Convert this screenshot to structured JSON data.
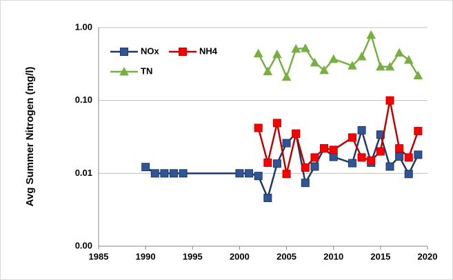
{
  "chart_data": {
    "type": "line",
    "y_label": "Avg Summer Nitrogen (mg/l)",
    "log_y": true,
    "grid": true,
    "xlim": [
      1985,
      2020
    ],
    "xticks": [
      1985,
      1990,
      1995,
      2000,
      2005,
      2010,
      2015,
      2020
    ],
    "ylim": [
      0.001,
      1
    ],
    "yticks": [
      {
        "value": 0.001,
        "label": "0.00"
      },
      0.01,
      {
        "value": 0.1,
        "label": "0.10"
      },
      {
        "value": 1,
        "label": "1.00"
      }
    ],
    "legend": "top-left",
    "series": [
      {
        "name": "NOx",
        "color": "#2f5597",
        "x": [
          1990,
          1991,
          1992,
          1993,
          1994,
          2000,
          2001,
          2002,
          2003,
          2004,
          2005,
          2006,
          2007,
          2008,
          2009,
          2010,
          2012,
          2013,
          2014,
          2015,
          2016,
          2017,
          2018,
          2019
        ],
        "values": [
          0.0122,
          0.01,
          0.01,
          0.01,
          0.01,
          0.01,
          0.01,
          0.0092,
          0.0046,
          0.0136,
          0.026,
          0.035,
          0.0074,
          0.0124,
          0.022,
          0.0168,
          0.0138,
          0.039,
          0.014,
          0.034,
          0.0124,
          0.017,
          0.0098,
          0.018
        ]
      },
      {
        "name": "NH4",
        "color": "#ff0000",
        "x": [
          2002,
          2003,
          2004,
          2005,
          2006,
          2007,
          2008,
          2009,
          2010,
          2012,
          2013,
          2014,
          2015,
          2016,
          2017,
          2018,
          2019
        ],
        "values": [
          0.042,
          0.014,
          0.049,
          0.0098,
          0.035,
          0.012,
          0.0165,
          0.022,
          0.021,
          0.031,
          0.0165,
          0.015,
          0.02,
          0.1,
          0.022,
          0.0165,
          0.038
        ]
      },
      {
        "name": "TN",
        "color": "#77b040",
        "x": [
          2002,
          2003,
          2004,
          2005,
          2006,
          2007,
          2008,
          2009,
          2010,
          2012,
          2013,
          2014,
          2015,
          2016,
          2017,
          2018,
          2019
        ],
        "values": [
          0.44,
          0.25,
          0.43,
          0.21,
          0.51,
          0.52,
          0.33,
          0.26,
          0.37,
          0.3,
          0.4,
          0.79,
          0.29,
          0.29,
          0.45,
          0.36,
          0.22
        ]
      }
    ]
  }
}
